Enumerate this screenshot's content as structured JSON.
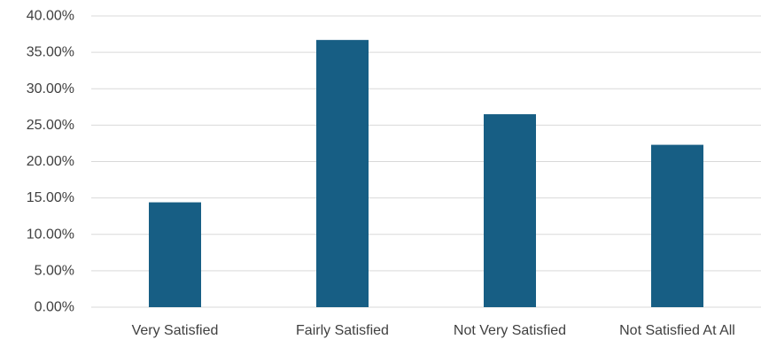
{
  "chart_data": {
    "type": "bar",
    "title": "",
    "xlabel": "",
    "ylabel": "",
    "categories": [
      "Very Satisfied",
      "Fairly Satisfied",
      "Not Very Satisfied",
      "Not Satisfied At All"
    ],
    "values": [
      14.4,
      36.7,
      26.5,
      22.3
    ],
    "ylim": [
      0,
      40
    ],
    "y_ticks": [
      0,
      5,
      10,
      15,
      20,
      25,
      30,
      35,
      40
    ],
    "y_tick_labels": [
      "0.00%",
      "5.00%",
      "10.00%",
      "15.00%",
      "20.00%",
      "25.00%",
      "30.00%",
      "35.00%",
      "40.00%"
    ],
    "value_unit": "%",
    "bar_color": "#175e84",
    "grid": true,
    "legend": "none"
  }
}
